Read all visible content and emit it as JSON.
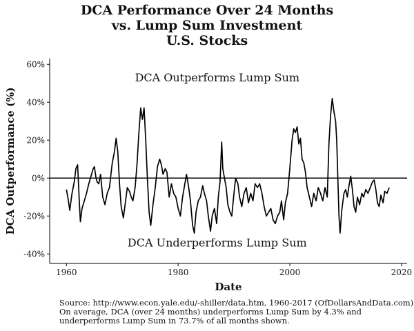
{
  "chart_data": {
    "type": "line",
    "title": [
      "DCA Performance Over 24 Months",
      "vs. Lump Sum Investment",
      "U.S. Stocks"
    ],
    "xlabel": "Date",
    "ylabel": "DCA Outperformance (%)",
    "xlim": [
      1957,
      2021
    ],
    "ylim": [
      -45,
      63
    ],
    "x_ticks": [
      1960,
      1980,
      2000,
      2020
    ],
    "y_ticks": [
      -40,
      -20,
      0,
      20,
      40,
      60
    ],
    "y_tick_labels": [
      "-40%",
      "-20%",
      "0%",
      "20%",
      "40%",
      "60%"
    ],
    "grid": false,
    "reference_line_y": 0,
    "annotations": {
      "top": "DCA Outperforms Lump Sum",
      "bottom": "DCA Underperforms Lump Sum"
    },
    "series": [
      {
        "points": [
          [
            1960.0,
            -6
          ],
          [
            1960.3,
            -11
          ],
          [
            1960.6,
            -17
          ],
          [
            1961.0,
            -8
          ],
          [
            1961.4,
            -2
          ],
          [
            1961.7,
            5
          ],
          [
            1962.0,
            7
          ],
          [
            1962.3,
            -12
          ],
          [
            1962.5,
            -23
          ],
          [
            1962.8,
            -16
          ],
          [
            1963.2,
            -12
          ],
          [
            1963.6,
            -8
          ],
          [
            1964.0,
            -3
          ],
          [
            1964.4,
            1
          ],
          [
            1964.8,
            5
          ],
          [
            1965.0,
            6
          ],
          [
            1965.3,
            0
          ],
          [
            1965.5,
            -2
          ],
          [
            1965.8,
            -3
          ],
          [
            1966.1,
            2
          ],
          [
            1966.5,
            -10
          ],
          [
            1966.9,
            -14
          ],
          [
            1967.3,
            -8
          ],
          [
            1967.7,
            -5
          ],
          [
            1968.2,
            8
          ],
          [
            1968.6,
            14
          ],
          [
            1968.9,
            21
          ],
          [
            1969.2,
            14
          ],
          [
            1969.5,
            -3
          ],
          [
            1969.8,
            -15
          ],
          [
            1970.2,
            -21
          ],
          [
            1970.5,
            -14
          ],
          [
            1970.9,
            -5
          ],
          [
            1971.3,
            -7
          ],
          [
            1971.6,
            -10
          ],
          [
            1971.9,
            -12
          ],
          [
            1972.3,
            -5
          ],
          [
            1972.6,
            6
          ],
          [
            1973.0,
            25
          ],
          [
            1973.3,
            37
          ],
          [
            1973.6,
            31
          ],
          [
            1973.9,
            37
          ],
          [
            1974.2,
            20
          ],
          [
            1974.5,
            0
          ],
          [
            1974.8,
            -18
          ],
          [
            1975.1,
            -25
          ],
          [
            1975.5,
            -14
          ],
          [
            1975.9,
            -5
          ],
          [
            1976.3,
            6
          ],
          [
            1976.7,
            10
          ],
          [
            1977.0,
            7
          ],
          [
            1977.3,
            2
          ],
          [
            1977.7,
            5
          ],
          [
            1978.0,
            3
          ],
          [
            1978.4,
            -10
          ],
          [
            1978.8,
            -3
          ],
          [
            1979.2,
            -8
          ],
          [
            1979.6,
            -10
          ],
          [
            1980.0,
            -16
          ],
          [
            1980.4,
            -20
          ],
          [
            1980.8,
            -10
          ],
          [
            1981.2,
            -3
          ],
          [
            1981.5,
            2
          ],
          [
            1981.9,
            -5
          ],
          [
            1982.2,
            -12
          ],
          [
            1982.6,
            -25
          ],
          [
            1982.9,
            -29
          ],
          [
            1983.2,
            -18
          ],
          [
            1983.6,
            -12
          ],
          [
            1984.0,
            -10
          ],
          [
            1984.4,
            -4
          ],
          [
            1984.7,
            -8
          ],
          [
            1985.1,
            -12
          ],
          [
            1985.4,
            -20
          ],
          [
            1985.8,
            -28
          ],
          [
            1986.1,
            -20
          ],
          [
            1986.5,
            -16
          ],
          [
            1986.9,
            -24
          ],
          [
            1987.2,
            -10
          ],
          [
            1987.5,
            -2
          ],
          [
            1987.8,
            19
          ],
          [
            1988.0,
            5
          ],
          [
            1988.3,
            0
          ],
          [
            1988.6,
            -5
          ],
          [
            1988.9,
            -14
          ],
          [
            1989.3,
            -18
          ],
          [
            1989.6,
            -20
          ],
          [
            1990.0,
            -8
          ],
          [
            1990.3,
            0
          ],
          [
            1990.7,
            -3
          ],
          [
            1991.0,
            -10
          ],
          [
            1991.4,
            -15
          ],
          [
            1991.8,
            -8
          ],
          [
            1992.2,
            -5
          ],
          [
            1992.6,
            -13
          ],
          [
            1993.0,
            -8
          ],
          [
            1993.4,
            -12
          ],
          [
            1993.8,
            -3
          ],
          [
            1994.2,
            -5
          ],
          [
            1994.6,
            -3
          ],
          [
            1995.0,
            -8
          ],
          [
            1995.4,
            -15
          ],
          [
            1995.8,
            -20
          ],
          [
            1996.2,
            -18
          ],
          [
            1996.6,
            -16
          ],
          [
            1997.0,
            -22
          ],
          [
            1997.4,
            -24
          ],
          [
            1997.8,
            -20
          ],
          [
            1998.2,
            -18
          ],
          [
            1998.5,
            -12
          ],
          [
            1998.9,
            -22
          ],
          [
            1999.2,
            -13
          ],
          [
            1999.6,
            -8
          ],
          [
            2000.0,
            5
          ],
          [
            2000.4,
            20
          ],
          [
            2000.7,
            26
          ],
          [
            2001.0,
            24
          ],
          [
            2001.3,
            27
          ],
          [
            2001.6,
            18
          ],
          [
            2001.9,
            21
          ],
          [
            2002.2,
            10
          ],
          [
            2002.5,
            8
          ],
          [
            2002.8,
            3
          ],
          [
            2003.1,
            -5
          ],
          [
            2003.5,
            -10
          ],
          [
            2003.9,
            -15
          ],
          [
            2004.3,
            -8
          ],
          [
            2004.7,
            -12
          ],
          [
            2005.1,
            -5
          ],
          [
            2005.5,
            -8
          ],
          [
            2005.9,
            -12
          ],
          [
            2006.3,
            -5
          ],
          [
            2006.7,
            -10
          ],
          [
            2007.0,
            18
          ],
          [
            2007.3,
            33
          ],
          [
            2007.6,
            42
          ],
          [
            2007.9,
            35
          ],
          [
            2008.2,
            30
          ],
          [
            2008.4,
            20
          ],
          [
            2008.6,
            0
          ],
          [
            2008.8,
            -20
          ],
          [
            2009.0,
            -29
          ],
          [
            2009.3,
            -17
          ],
          [
            2009.7,
            -8
          ],
          [
            2010.0,
            -6
          ],
          [
            2010.3,
            -10
          ],
          [
            2010.6,
            -4
          ],
          [
            2010.9,
            1
          ],
          [
            2011.2,
            -6
          ],
          [
            2011.5,
            -15
          ],
          [
            2011.8,
            -18
          ],
          [
            2012.1,
            -10
          ],
          [
            2012.5,
            -14
          ],
          [
            2012.9,
            -8
          ],
          [
            2013.2,
            -10
          ],
          [
            2013.6,
            -6
          ],
          [
            2014.0,
            -8
          ],
          [
            2014.4,
            -5
          ],
          [
            2014.8,
            -2
          ],
          [
            2015.1,
            -1
          ],
          [
            2015.4,
            -6
          ],
          [
            2015.7,
            -13
          ],
          [
            2016.0,
            -15
          ],
          [
            2016.3,
            -9
          ],
          [
            2016.7,
            -13
          ],
          [
            2017.0,
            -7
          ],
          [
            2017.4,
            -8
          ],
          [
            2017.8,
            -5
          ]
        ]
      }
    ]
  },
  "footer": {
    "source_line": "Source:  http://www.econ.yale.edu/-shiller/data.htm, 1960-2017 (OfDollarsAndData.com)",
    "note_line_1": "On average, DCA (over 24 months) underperforms Lump Sum by 4.3% and",
    "note_line_2": "underperforms Lump Sum in 73.7% of all months shown."
  },
  "colors": {
    "line": "#000000",
    "axis": "#000000",
    "text": "#111111",
    "background": "#ffffff"
  }
}
